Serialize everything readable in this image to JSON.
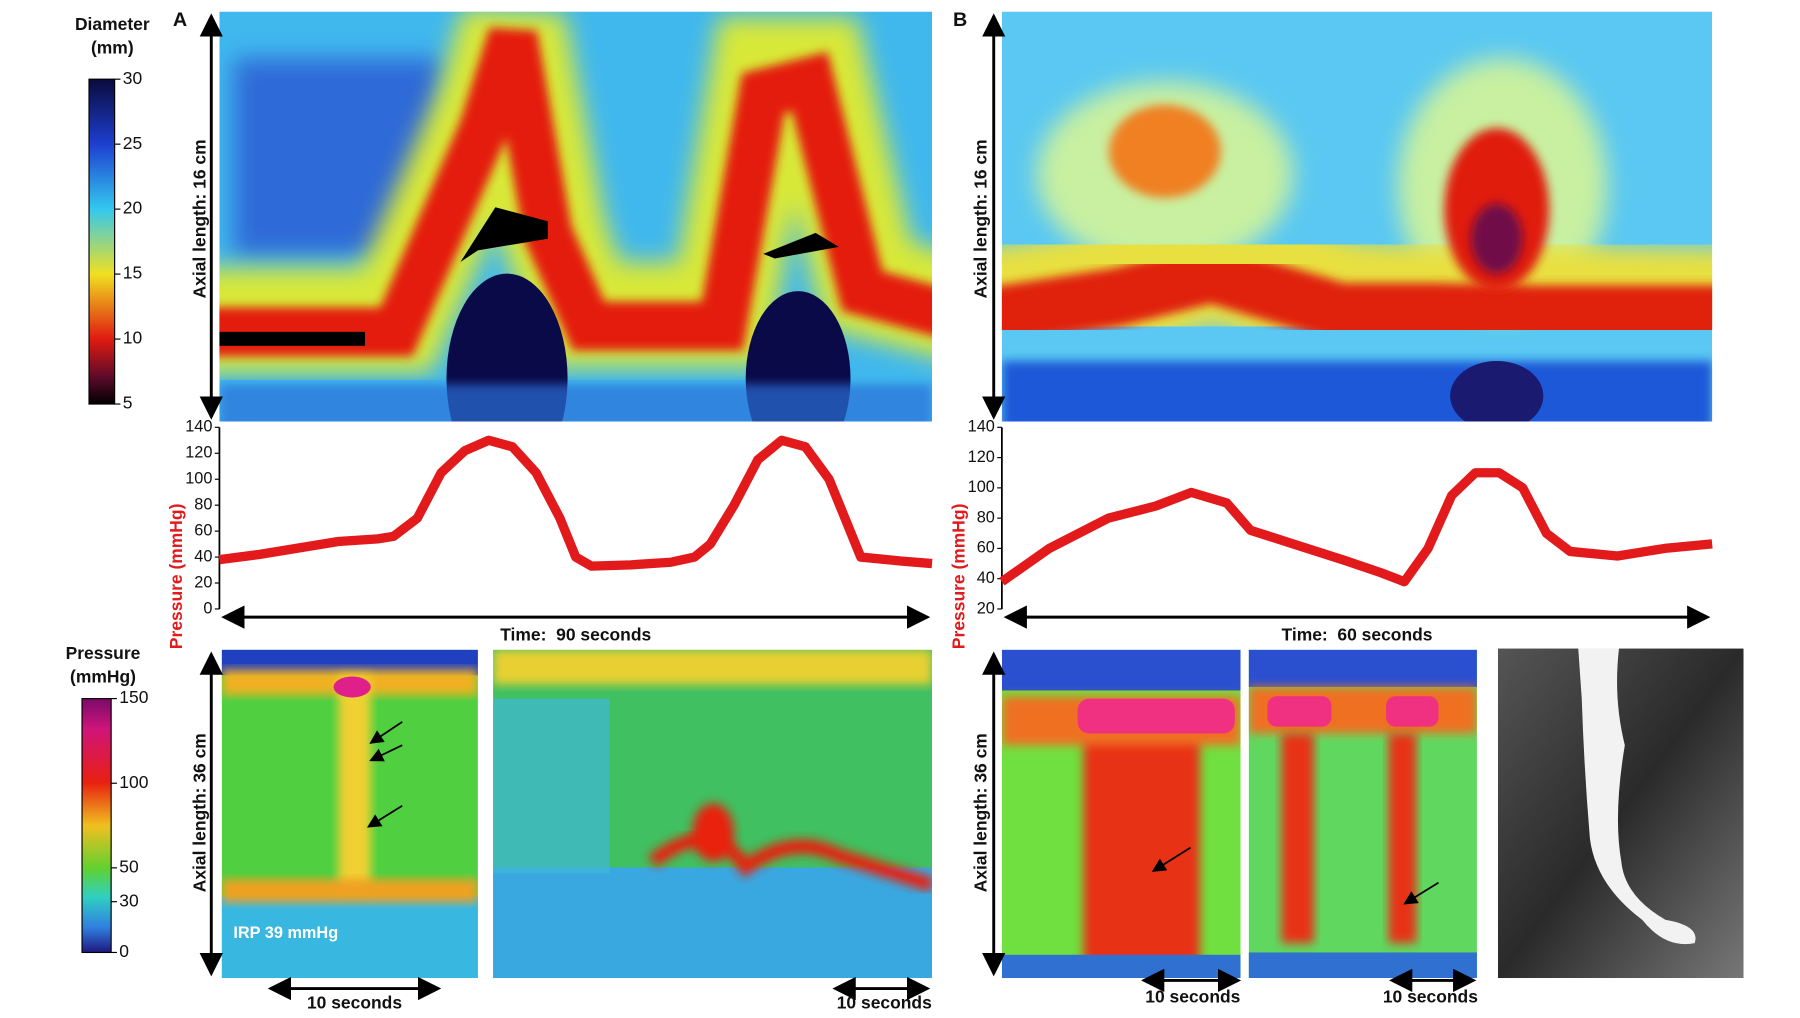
{
  "colorbars": [
    {
      "title": [
        "Diameter",
        "(mm)"
      ],
      "lim": [
        5,
        30
      ],
      "ticks": [
        30,
        25,
        20,
        15,
        10,
        5
      ]
    },
    {
      "title": [
        "Pressure",
        "(mmHg)"
      ],
      "lim": [
        0,
        150
      ],
      "ticks": [
        150,
        100,
        50,
        30,
        0
      ]
    }
  ],
  "panels": [
    {
      "label": "A",
      "axial_top": "Axial length: 16 cm",
      "axial_bottom": "Axial length: 36 cm",
      "annotation": "IRP 39 mmHg",
      "scale_labels": [
        "10 seconds",
        "10 seconds"
      ]
    },
    {
      "label": "B",
      "axial_top": "Axial length: 16 cm",
      "axial_bottom": "Axial length: 36 cm",
      "scale_labels": [
        "10 seconds",
        "10 seconds"
      ]
    }
  ],
  "chart_data": [
    {
      "type": "line",
      "ylabel": "Pressure (mmHg)",
      "xlabel": "Time:  90 seconds",
      "x": [
        0,
        5,
        10,
        15,
        20,
        22,
        25,
        28,
        31,
        34,
        37,
        40,
        43,
        45,
        47,
        52,
        57,
        60,
        62,
        65,
        68,
        71,
        74,
        77,
        79,
        81,
        86,
        90
      ],
      "values": [
        38,
        42,
        47,
        52,
        54,
        56,
        70,
        105,
        122,
        130,
        125,
        105,
        70,
        40,
        33,
        34,
        36,
        40,
        50,
        80,
        115,
        130,
        125,
        100,
        70,
        40,
        37,
        35
      ],
      "xlim": [
        0,
        90
      ],
      "ylim": [
        0,
        140
      ],
      "yticks": [
        0,
        20,
        40,
        60,
        80,
        100,
        120,
        140
      ],
      "color": "#e31a1c"
    },
    {
      "type": "line",
      "ylabel": "Pressure (mmHg)",
      "xlabel": "Time:  60 seconds",
      "x": [
        0,
        4,
        9,
        13,
        16,
        19,
        21,
        25,
        29,
        32,
        34,
        36,
        38,
        40,
        42,
        44,
        46,
        48,
        52,
        56,
        60
      ],
      "values": [
        38,
        60,
        80,
        88,
        97,
        90,
        72,
        62,
        52,
        44,
        38,
        60,
        95,
        110,
        110,
        100,
        70,
        58,
        55,
        60,
        63
      ],
      "xlim": [
        0,
        60
      ],
      "ylim": [
        20,
        140
      ],
      "yticks": [
        20,
        40,
        60,
        80,
        100,
        120,
        140
      ],
      "color": "#e31a1c"
    }
  ]
}
